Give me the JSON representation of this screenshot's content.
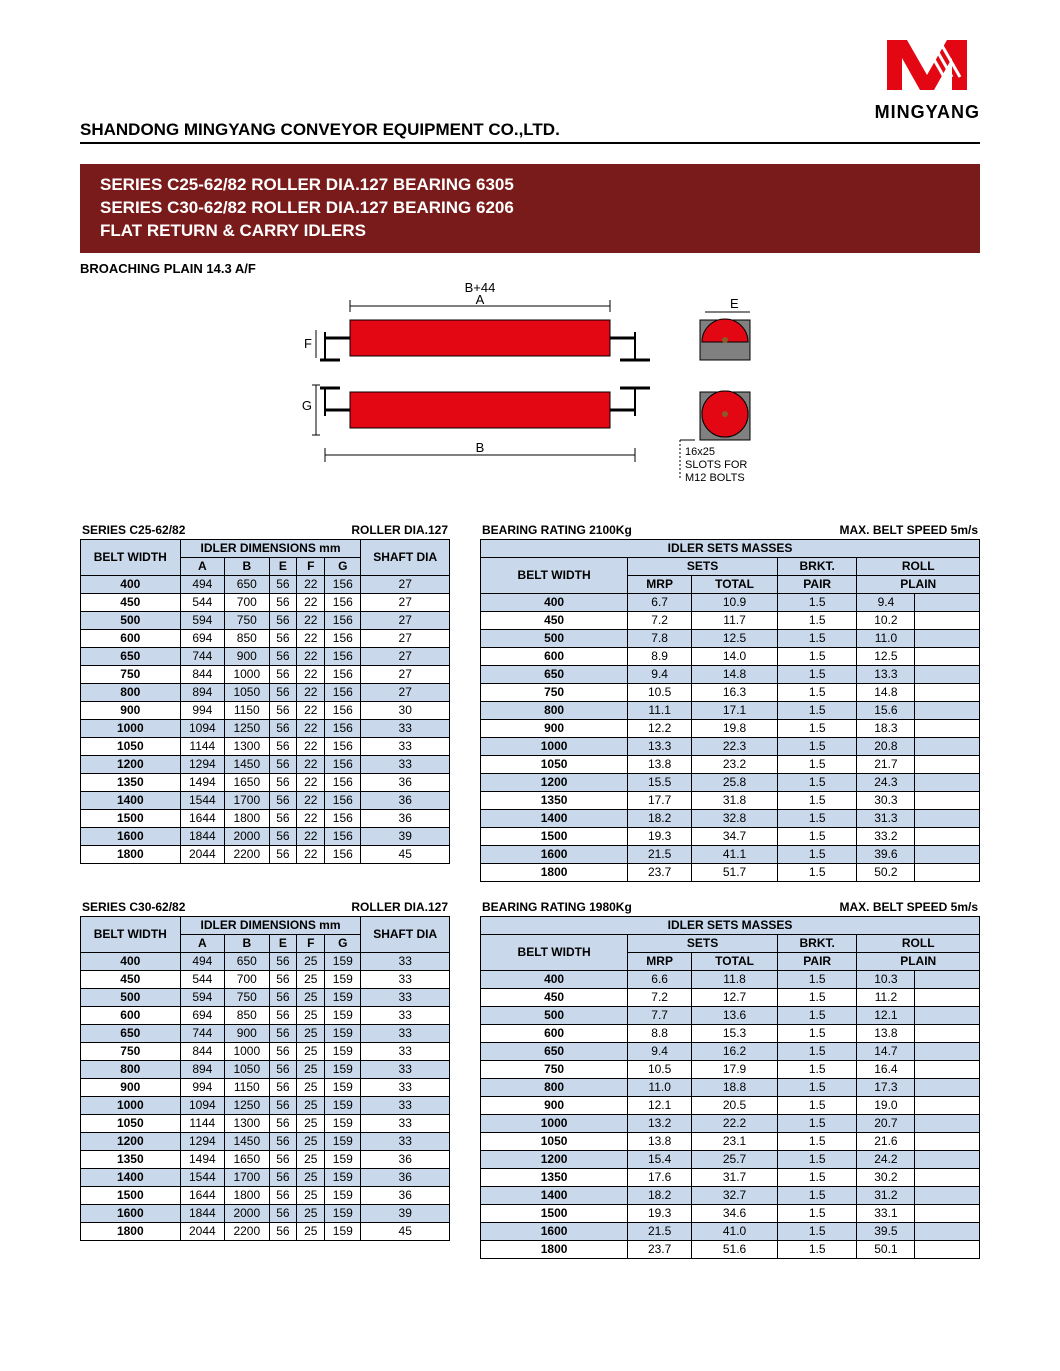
{
  "brand": "MINGYANG",
  "logo_color": "#e30613",
  "company": "SHANDONG MINGYANG CONVEYOR EQUIPMENT CO.,LTD.",
  "maroon_color": "#7a1b1b",
  "header_row_color": "#c9d8ea",
  "title_lines": [
    "SERIES C25-62/82 ROLLER DIA.127 BEARING 6305",
    "SERIES C30-62/82 ROLLER DIA.127 BEARING 6206",
    "FLAT RETURN & CARRY IDLERS"
  ],
  "sub_note": "BROACHING PLAIN 14.3 A/F",
  "diagram": {
    "top_label": "B+44",
    "A": "A",
    "B": "B",
    "E": "E",
    "F": "F",
    "G": "G",
    "slot_text1": "16x25",
    "slot_text2": "SLOTS FOR",
    "slot_text3": "M12 BOLTS",
    "roller_color": "#e30613",
    "metal_color": "#808080"
  },
  "block1": {
    "series_label": "SERIES C25-62/82",
    "roller_label": "ROLLER DIA.127",
    "rating_label": "BEARING RATING 2100Kg",
    "speed_label": "MAX. BELT SPEED 5m/s",
    "dim_headers": {
      "group": "IDLER DIMENSIONS mm",
      "belt": "BELT WIDTH",
      "shaft": "SHAFT DIA",
      "A": "A",
      "B": "B",
      "E": "E",
      "F": "F",
      "G": "G"
    },
    "mass_headers": {
      "group": "IDLER SETS MASSES",
      "belt": "BELT WIDTH",
      "sets": "SETS",
      "mrp": "MRP",
      "total": "TOTAL",
      "brkt": "BRKT.",
      "pair": "PAIR",
      "roll": "ROLL",
      "plain": "PLAIN"
    },
    "dim_rows": [
      [
        "400",
        "494",
        "650",
        "56",
        "22",
        "156",
        "27"
      ],
      [
        "450",
        "544",
        "700",
        "56",
        "22",
        "156",
        "27"
      ],
      [
        "500",
        "594",
        "750",
        "56",
        "22",
        "156",
        "27"
      ],
      [
        "600",
        "694",
        "850",
        "56",
        "22",
        "156",
        "27"
      ],
      [
        "650",
        "744",
        "900",
        "56",
        "22",
        "156",
        "27"
      ],
      [
        "750",
        "844",
        "1000",
        "56",
        "22",
        "156",
        "27"
      ],
      [
        "800",
        "894",
        "1050",
        "56",
        "22",
        "156",
        "27"
      ],
      [
        "900",
        "994",
        "1150",
        "56",
        "22",
        "156",
        "30"
      ],
      [
        "1000",
        "1094",
        "1250",
        "56",
        "22",
        "156",
        "33"
      ],
      [
        "1050",
        "1144",
        "1300",
        "56",
        "22",
        "156",
        "33"
      ],
      [
        "1200",
        "1294",
        "1450",
        "56",
        "22",
        "156",
        "33"
      ],
      [
        "1350",
        "1494",
        "1650",
        "56",
        "22",
        "156",
        "36"
      ],
      [
        "1400",
        "1544",
        "1700",
        "56",
        "22",
        "156",
        "36"
      ],
      [
        "1500",
        "1644",
        "1800",
        "56",
        "22",
        "156",
        "36"
      ],
      [
        "1600",
        "1844",
        "2000",
        "56",
        "22",
        "156",
        "39"
      ],
      [
        "1800",
        "2044",
        "2200",
        "56",
        "22",
        "156",
        "45"
      ]
    ],
    "mass_rows": [
      [
        "400",
        "6.7",
        "10.9",
        "1.5",
        "9.4"
      ],
      [
        "450",
        "7.2",
        "11.7",
        "1.5",
        "10.2"
      ],
      [
        "500",
        "7.8",
        "12.5",
        "1.5",
        "11.0"
      ],
      [
        "600",
        "8.9",
        "14.0",
        "1.5",
        "12.5"
      ],
      [
        "650",
        "9.4",
        "14.8",
        "1.5",
        "13.3"
      ],
      [
        "750",
        "10.5",
        "16.3",
        "1.5",
        "14.8"
      ],
      [
        "800",
        "11.1",
        "17.1",
        "1.5",
        "15.6"
      ],
      [
        "900",
        "12.2",
        "19.8",
        "1.5",
        "18.3"
      ],
      [
        "1000",
        "13.3",
        "22.3",
        "1.5",
        "20.8"
      ],
      [
        "1050",
        "13.8",
        "23.2",
        "1.5",
        "21.7"
      ],
      [
        "1200",
        "15.5",
        "25.8",
        "1.5",
        "24.3"
      ],
      [
        "1350",
        "17.7",
        "31.8",
        "1.5",
        "30.3"
      ],
      [
        "1400",
        "18.2",
        "32.8",
        "1.5",
        "31.3"
      ],
      [
        "1500",
        "19.3",
        "34.7",
        "1.5",
        "33.2"
      ],
      [
        "1600",
        "21.5",
        "41.1",
        "1.5",
        "39.6"
      ],
      [
        "1800",
        "23.7",
        "51.7",
        "1.5",
        "50.2"
      ]
    ]
  },
  "block2": {
    "series_label": "SERIES C30-62/82",
    "roller_label": "ROLLER DIA.127",
    "rating_label": "BEARING RATING 1980Kg",
    "speed_label": "MAX. BELT SPEED 5m/s",
    "dim_rows": [
      [
        "400",
        "494",
        "650",
        "56",
        "25",
        "159",
        "33"
      ],
      [
        "450",
        "544",
        "700",
        "56",
        "25",
        "159",
        "33"
      ],
      [
        "500",
        "594",
        "750",
        "56",
        "25",
        "159",
        "33"
      ],
      [
        "600",
        "694",
        "850",
        "56",
        "25",
        "159",
        "33"
      ],
      [
        "650",
        "744",
        "900",
        "56",
        "25",
        "159",
        "33"
      ],
      [
        "750",
        "844",
        "1000",
        "56",
        "25",
        "159",
        "33"
      ],
      [
        "800",
        "894",
        "1050",
        "56",
        "25",
        "159",
        "33"
      ],
      [
        "900",
        "994",
        "1150",
        "56",
        "25",
        "159",
        "33"
      ],
      [
        "1000",
        "1094",
        "1250",
        "56",
        "25",
        "159",
        "33"
      ],
      [
        "1050",
        "1144",
        "1300",
        "56",
        "25",
        "159",
        "33"
      ],
      [
        "1200",
        "1294",
        "1450",
        "56",
        "25",
        "159",
        "33"
      ],
      [
        "1350",
        "1494",
        "1650",
        "56",
        "25",
        "159",
        "36"
      ],
      [
        "1400",
        "1544",
        "1700",
        "56",
        "25",
        "159",
        "36"
      ],
      [
        "1500",
        "1644",
        "1800",
        "56",
        "25",
        "159",
        "36"
      ],
      [
        "1600",
        "1844",
        "2000",
        "56",
        "25",
        "159",
        "39"
      ],
      [
        "1800",
        "2044",
        "2200",
        "56",
        "25",
        "159",
        "45"
      ]
    ],
    "mass_rows": [
      [
        "400",
        "6.6",
        "11.8",
        "1.5",
        "10.3"
      ],
      [
        "450",
        "7.2",
        "12.7",
        "1.5",
        "11.2"
      ],
      [
        "500",
        "7.7",
        "13.6",
        "1.5",
        "12.1"
      ],
      [
        "600",
        "8.8",
        "15.3",
        "1.5",
        "13.8"
      ],
      [
        "650",
        "9.4",
        "16.2",
        "1.5",
        "14.7"
      ],
      [
        "750",
        "10.5",
        "17.9",
        "1.5",
        "16.4"
      ],
      [
        "800",
        "11.0",
        "18.8",
        "1.5",
        "17.3"
      ],
      [
        "900",
        "12.1",
        "20.5",
        "1.5",
        "19.0"
      ],
      [
        "1000",
        "13.2",
        "22.2",
        "1.5",
        "20.7"
      ],
      [
        "1050",
        "13.8",
        "23.1",
        "1.5",
        "21.6"
      ],
      [
        "1200",
        "15.4",
        "25.7",
        "1.5",
        "24.2"
      ],
      [
        "1350",
        "17.6",
        "31.7",
        "1.5",
        "30.2"
      ],
      [
        "1400",
        "18.2",
        "32.7",
        "1.5",
        "31.2"
      ],
      [
        "1500",
        "19.3",
        "34.6",
        "1.5",
        "33.1"
      ],
      [
        "1600",
        "21.5",
        "41.0",
        "1.5",
        "39.5"
      ],
      [
        "1800",
        "23.7",
        "51.6",
        "1.5",
        "50.1"
      ]
    ]
  }
}
